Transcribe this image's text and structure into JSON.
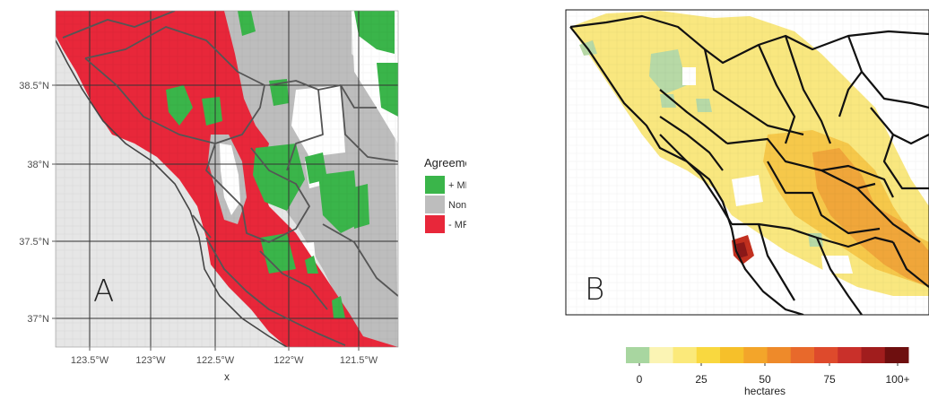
{
  "panel_a": {
    "letter": "A",
    "x_axis_title": "x",
    "lon_ticks": [
      "123.5°W",
      "123°W",
      "122.5°W",
      "122°W",
      "121.5°W"
    ],
    "lat_ticks": [
      "38.5°N",
      "38°N",
      "37.5°N",
      "37°N"
    ],
    "legend": {
      "title": "Agreement",
      "items": [
        {
          "label": "+ MFRI",
          "color": "#3ab54a"
        },
        {
          "label": "None",
          "color": "#bdbdbd"
        },
        {
          "label": "- MFRI",
          "color": "#e8273a"
        }
      ]
    }
  },
  "panel_b": {
    "letter": "B",
    "scale": {
      "title": "hectares",
      "ticks": [
        "0",
        "25",
        "50",
        "75",
        "100+"
      ],
      "colors": [
        "#a8d6a0",
        "#fbf4b4",
        "#fbe97a",
        "#f9d83f",
        "#f6c02a",
        "#f3a52a",
        "#ee8a2a",
        "#e8692b",
        "#de4a2c",
        "#c9302a",
        "#a11d1d",
        "#6e0f0f"
      ]
    }
  },
  "colors": {
    "water": "#ffffff",
    "land_bg": "#e6e6e6",
    "red": "#e8273a",
    "green": "#3ab54a",
    "gray": "#bdbdbd",
    "yellow": "#f9e77f",
    "orange": "#f0a63a",
    "dark_red": "#a31a1a"
  }
}
